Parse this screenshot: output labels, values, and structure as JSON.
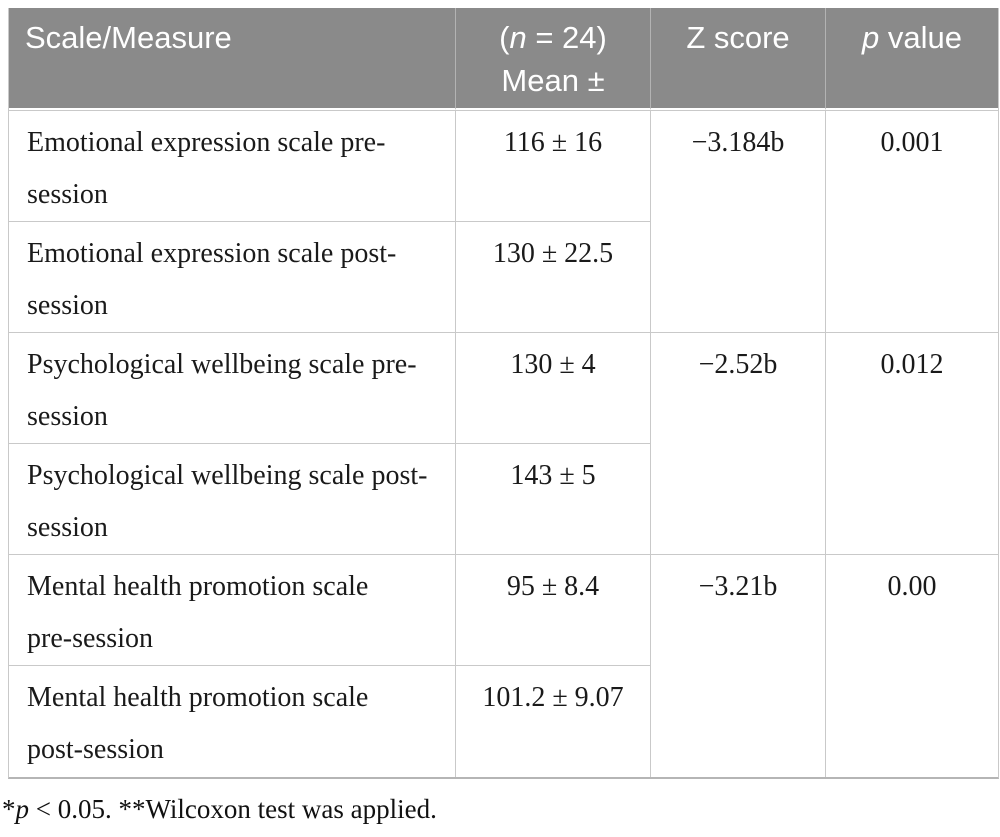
{
  "table": {
    "header": {
      "scale_measure": "Scale/Measure",
      "n_open": "(",
      "n_italic": "n",
      "n_rest": " = 24)",
      "mean_line": "Mean ±",
      "z_score": "Z score",
      "p_italic": "p",
      "p_rest": " value"
    },
    "groups": [
      {
        "pre": {
          "label": "Emotional expression scale pre-\nsession",
          "mean": "116 ± 16"
        },
        "post": {
          "label": "Emotional expression scale post-\nsession",
          "mean": "130 ± 22.5"
        },
        "z": "−3.184b",
        "p": "0.001"
      },
      {
        "pre": {
          "label": "Psychological wellbeing scale pre-\nsession",
          "mean": "130 ± 4"
        },
        "post": {
          "label": "Psychological wellbeing scale post-\nsession",
          "mean": "143 ± 5"
        },
        "z": "−2.52b",
        "p": "0.012"
      },
      {
        "pre": {
          "label": "Mental health promotion scale\npre-session",
          "mean": "95 ± 8.4"
        },
        "post": {
          "label": "Mental health promotion scale\npost-session",
          "mean": "101.2 ± 9.07"
        },
        "z": "−3.21b",
        "p": "0.00"
      }
    ]
  },
  "footnote": {
    "star": "*",
    "p_italic": "p",
    "rest": " < 0.05. **Wilcoxon test was applied."
  },
  "colors": {
    "header_bg": "#8a8a8a",
    "header_text": "#ffffff",
    "body_text": "#1a1a1a",
    "grid_line": "#c9c9c9",
    "bottom_border": "#b5b5b5"
  }
}
